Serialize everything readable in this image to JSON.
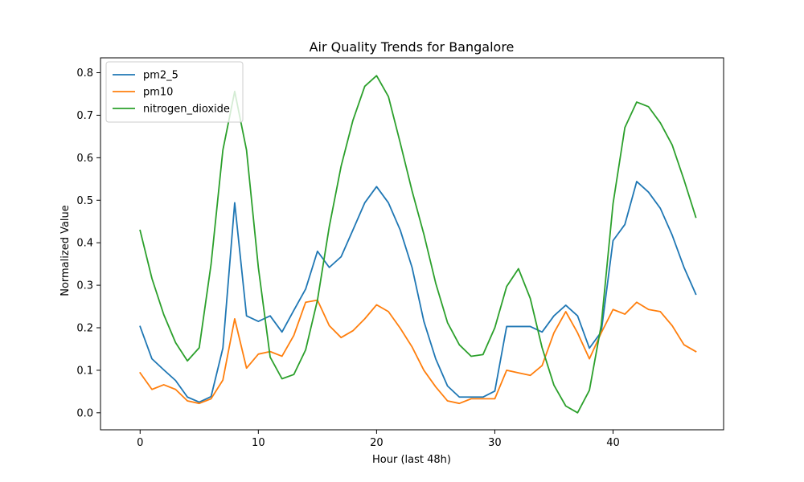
{
  "chart_data": {
    "type": "line",
    "title": "Air Quality Trends for Bangalore",
    "xlabel": "Hour (last 48h)",
    "ylabel": "Normalized Value",
    "xlim": [
      -3.35,
      49.35
    ],
    "ylim": [
      -0.04,
      0.835
    ],
    "xticks": [
      0,
      10,
      20,
      30,
      40
    ],
    "yticks": [
      0.0,
      0.1,
      0.2,
      0.3,
      0.4,
      0.5,
      0.6,
      0.7,
      0.8
    ],
    "xtick_labels": [
      "0",
      "10",
      "20",
      "30",
      "40"
    ],
    "ytick_labels": [
      "0.0",
      "0.1",
      "0.2",
      "0.3",
      "0.4",
      "0.5",
      "0.6",
      "0.7",
      "0.8"
    ],
    "grid": false,
    "legend_position": "top-left",
    "x": [
      0,
      1,
      2,
      3,
      4,
      5,
      6,
      7,
      8,
      9,
      10,
      11,
      12,
      13,
      14,
      15,
      16,
      17,
      18,
      19,
      20,
      21,
      22,
      23,
      24,
      25,
      26,
      27,
      28,
      29,
      30,
      31,
      32,
      33,
      34,
      35,
      36,
      37,
      38,
      39,
      40,
      41,
      42,
      43,
      44,
      45,
      46,
      47
    ],
    "series": [
      {
        "name": "pm2_5",
        "color": "#1f77b4",
        "values": [
          0.203,
          0.127,
          0.101,
          0.076,
          0.037,
          0.025,
          0.038,
          0.152,
          0.494,
          0.228,
          0.215,
          0.228,
          0.19,
          0.241,
          0.291,
          0.38,
          0.342,
          0.367,
          0.43,
          0.494,
          0.532,
          0.494,
          0.43,
          0.342,
          0.215,
          0.127,
          0.063,
          0.037,
          0.037,
          0.037,
          0.051,
          0.203,
          0.203,
          0.203,
          0.19,
          0.228,
          0.253,
          0.228,
          0.152,
          0.19,
          0.405,
          0.443,
          0.544,
          0.519,
          0.481,
          0.418,
          0.342,
          0.279
        ]
      },
      {
        "name": "pm10",
        "color": "#ff7f0e",
        "values": [
          0.094,
          0.055,
          0.066,
          0.055,
          0.028,
          0.022,
          0.033,
          0.077,
          0.221,
          0.105,
          0.138,
          0.144,
          0.133,
          0.182,
          0.26,
          0.265,
          0.205,
          0.177,
          0.193,
          0.221,
          0.254,
          0.238,
          0.199,
          0.155,
          0.1,
          0.061,
          0.028,
          0.022,
          0.033,
          0.033,
          0.033,
          0.1,
          0.094,
          0.088,
          0.111,
          0.188,
          0.238,
          0.188,
          0.127,
          0.188,
          0.243,
          0.232,
          0.26,
          0.243,
          0.238,
          0.205,
          0.16,
          0.144
        ]
      },
      {
        "name": "nitrogen_dioxide",
        "color": "#2ca02c",
        "values": [
          0.429,
          0.316,
          0.231,
          0.165,
          0.122,
          0.153,
          0.349,
          0.618,
          0.756,
          0.618,
          0.342,
          0.131,
          0.08,
          0.09,
          0.148,
          0.265,
          0.438,
          0.58,
          0.688,
          0.768,
          0.793,
          0.744,
          0.635,
          0.522,
          0.42,
          0.305,
          0.212,
          0.16,
          0.133,
          0.137,
          0.2,
          0.297,
          0.339,
          0.269,
          0.153,
          0.065,
          0.016,
          0.0,
          0.053,
          0.206,
          0.492,
          0.671,
          0.731,
          0.72,
          0.682,
          0.63,
          0.548,
          0.46
        ]
      }
    ]
  }
}
